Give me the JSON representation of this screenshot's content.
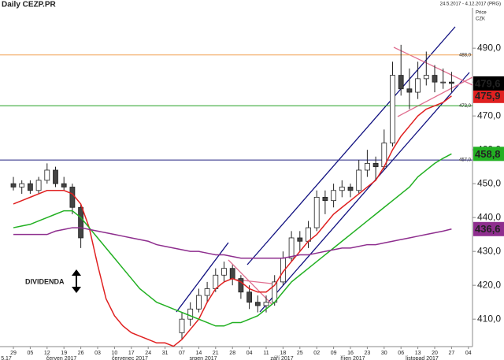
{
  "chart_data": {
    "type": "candlestick",
    "title": "Daily CEZP.PR",
    "date_range": "24.5.2017 - 4.12.2017 (PRG)",
    "axis_title": "Price",
    "currency": "CZK",
    "annotation": "DIVIDENDA",
    "categories": [
      "29",
      null,
      "05",
      null,
      "12",
      null,
      "19",
      null,
      "26",
      null,
      "03",
      null,
      "10",
      null,
      "17",
      null,
      "24",
      null,
      "31",
      null,
      "07",
      null,
      "14",
      null,
      "21",
      null,
      "28",
      null,
      "04",
      null,
      "11",
      null,
      "18",
      null,
      "25",
      null,
      "02",
      null,
      "09",
      null,
      "16",
      null,
      "23",
      null,
      "30",
      null,
      "06",
      null,
      "13",
      null,
      "20",
      null,
      "27",
      null,
      "04"
    ],
    "months": [
      "5.17",
      "červen 2017",
      "červenec 2017",
      "srpen 2017",
      "září 2017",
      "říjen 2017",
      "listopad 2017"
    ],
    "candles": {
      "open": [
        450,
        449,
        450,
        448,
        451,
        454,
        450,
        449,
        443,
        null,
        null,
        null,
        null,
        null,
        null,
        null,
        null,
        null,
        null,
        null,
        406,
        410,
        413,
        417,
        419,
        423,
        425,
        422,
        418,
        415,
        414,
        415,
        421,
        428,
        434,
        433,
        437,
        446,
        445,
        448,
        449,
        448,
        454,
        456,
        455,
        462,
        482,
        478,
        477,
        481,
        482,
        480,
        480,
        null,
        null
      ],
      "high": [
        452,
        451,
        451,
        452,
        456,
        455,
        452,
        450,
        444,
        null,
        null,
        null,
        null,
        null,
        null,
        null,
        null,
        null,
        null,
        null,
        412,
        415,
        419,
        421,
        425,
        427,
        426,
        423,
        420,
        417,
        417,
        423,
        430,
        436,
        436,
        439,
        448,
        448,
        450,
        451,
        450,
        457,
        460,
        458,
        466,
        486,
        491,
        484,
        486,
        489,
        485,
        484,
        483,
        null,
        null
      ],
      "low": [
        448,
        447,
        447,
        447,
        450,
        449,
        448,
        441,
        431,
        null,
        null,
        null,
        null,
        null,
        null,
        null,
        null,
        null,
        null,
        null,
        404,
        408,
        412,
        415,
        418,
        421,
        420,
        416,
        413,
        412,
        412,
        414,
        420,
        427,
        430,
        431,
        436,
        441,
        443,
        446,
        446,
        447,
        452,
        451,
        454,
        461,
        476,
        472,
        475,
        479,
        477,
        478,
        477,
        null,
        null
      ],
      "close": [
        449,
        450,
        448,
        451,
        454,
        450,
        449,
        443,
        434,
        null,
        null,
        null,
        null,
        null,
        null,
        null,
        null,
        null,
        null,
        null,
        410,
        413,
        417,
        419,
        423,
        425,
        422,
        418,
        415,
        414,
        415,
        421,
        428,
        434,
        433,
        437,
        446,
        445,
        448,
        449,
        448,
        454,
        456,
        455,
        462,
        482,
        478,
        477,
        481,
        482,
        480,
        480,
        479.6,
        null,
        null
      ],
      "up_color": "#ffffff",
      "down_color": "#444444",
      "last_label": "479,6"
    },
    "series": [
      {
        "color": "#e02020",
        "last_label": "475,9",
        "values": [
          444,
          445,
          446,
          447,
          448,
          448,
          448,
          447,
          444,
          437,
          426,
          416,
          411,
          408,
          406,
          405,
          404,
          403,
          403,
          402,
          404,
          407,
          410,
          415,
          419,
          421,
          422,
          421,
          419,
          418,
          418,
          420,
          424,
          427,
          430,
          433,
          435,
          438,
          441,
          443,
          445,
          447,
          449,
          451,
          455,
          460,
          464,
          467,
          470,
          472,
          473,
          474,
          475.9,
          null,
          null
        ]
      },
      {
        "color": "#22b022",
        "last_label": "458,8",
        "values": [
          437,
          437.5,
          438,
          439,
          440,
          441,
          442,
          442,
          440,
          437,
          434,
          431,
          428,
          425,
          422,
          419,
          417,
          415,
          414,
          413,
          412,
          411,
          410,
          409,
          408,
          408,
          409,
          409,
          410,
          411,
          413,
          415,
          418,
          421,
          423,
          425,
          427,
          429,
          431,
          433,
          435,
          437,
          439,
          441,
          443,
          445,
          447,
          449,
          452,
          454,
          456,
          457.5,
          458.8,
          null,
          null
        ]
      },
      {
        "color": "#8e2e8e",
        "last_label": "436,6",
        "values": [
          435,
          435,
          435,
          435,
          435,
          436,
          436.5,
          437,
          437,
          436.5,
          436,
          435.5,
          435,
          434.5,
          434,
          433.5,
          433,
          432,
          431.5,
          431,
          430.5,
          430,
          430,
          429.5,
          429,
          429,
          428.5,
          428,
          428,
          428,
          428,
          428,
          428,
          428.5,
          429,
          429,
          429.5,
          430,
          430.5,
          431,
          431,
          431.5,
          432,
          432,
          432.5,
          433,
          433.5,
          434,
          434.5,
          435,
          435.5,
          436,
          436.6,
          null,
          null
        ]
      }
    ],
    "levels": [
      {
        "value": 488,
        "label": "488,0",
        "color": "#f0a050"
      },
      {
        "value": 473,
        "label": "473,0",
        "color": "#22a022"
      },
      {
        "value": 457,
        "label": "457,0",
        "color": "#202080"
      }
    ],
    "ylim": [
      401.9,
      501.9
    ],
    "yticks": [
      {
        "value": 410,
        "label": "410,0"
      },
      {
        "value": 420,
        "label": "420,0"
      },
      {
        "value": 430,
        "label": "430,0"
      },
      {
        "value": 440,
        "label": "440,0"
      },
      {
        "value": 450,
        "label": "450,0"
      },
      {
        "value": 460,
        "label": "460,0"
      },
      {
        "value": 470,
        "label": "470,0"
      },
      {
        "value": 480,
        "label": "480,0"
      },
      {
        "value": 490,
        "label": "490,0"
      }
    ]
  }
}
